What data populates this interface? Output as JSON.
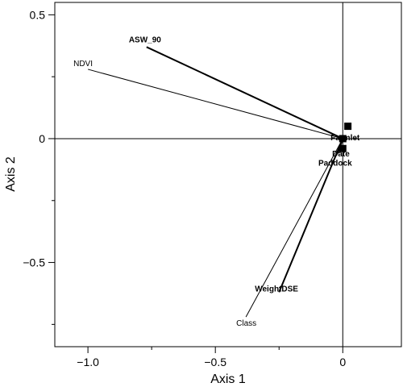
{
  "chart_data": {
    "type": "scatter",
    "title": "",
    "xlabel": "Axis 1",
    "ylabel": "Axis 2",
    "xlim": [
      -1.13,
      0.23
    ],
    "ylim": [
      -0.84,
      0.55
    ],
    "x_ticks": [
      {
        "value": -1.0,
        "label": "−1.0"
      },
      {
        "value": -0.5,
        "label": "−0.5"
      },
      {
        "value": 0.0,
        "label": "0"
      }
    ],
    "y_ticks": [
      {
        "value": 0.5,
        "label": "0.5"
      },
      {
        "value": 0.0,
        "label": "0"
      },
      {
        "value": -0.5,
        "label": "−0.5"
      }
    ],
    "grid": false,
    "reference_lines": {
      "x": 0,
      "y": 0
    },
    "vectors": [
      {
        "label": "ASW_90",
        "x": -0.77,
        "y": 0.37,
        "bold": true
      },
      {
        "label": "NDVI",
        "x": -1.0,
        "y": 0.28,
        "bold": false
      },
      {
        "label": "WeightDSE",
        "x": -0.25,
        "y": -0.62,
        "bold": true
      },
      {
        "label": "Class",
        "x": -0.38,
        "y": -0.72,
        "bold": false
      },
      {
        "label": "Farmlet",
        "x": -0.01,
        "y": -0.01,
        "bold": true
      },
      {
        "label": "Date",
        "x": -0.01,
        "y": -0.03,
        "bold": true
      },
      {
        "label": "Paddock",
        "x": -0.02,
        "y": -0.06,
        "bold": true
      }
    ],
    "points": [
      {
        "x": 0.02,
        "y": 0.05
      },
      {
        "x": 0.0,
        "y": 0.0
      },
      {
        "x": 0.0,
        "y": -0.04
      }
    ]
  }
}
